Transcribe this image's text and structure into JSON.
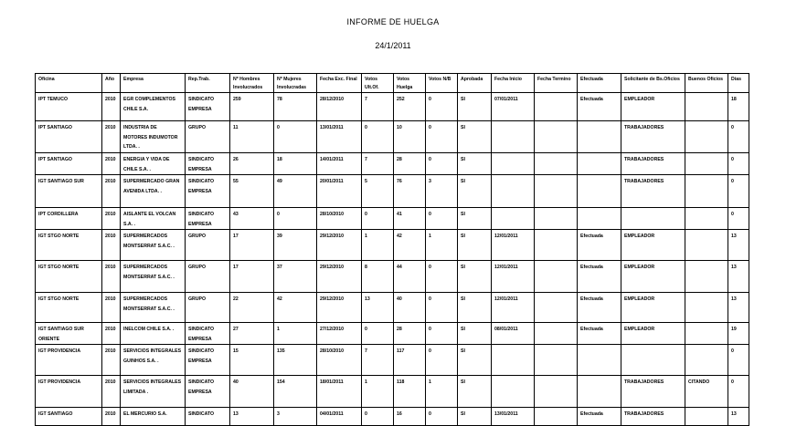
{
  "report": {
    "title": "INFORME DE HUELGA",
    "date": "24/1/2011"
  },
  "table": {
    "headers": [
      "Oficina",
      "Año",
      "Empresa",
      "Rep.Trab.",
      "Nº Hombres Involucrados",
      "Nº Mujeres Involucradas",
      "Fecha Exc. Final",
      "Votos Ult.Of.",
      "Votos Huelga",
      "Votos N/B",
      "Aprobada",
      "Fecha Inicio",
      "Fecha Termino",
      "Efectuada",
      "Solicitante de Bs.Oficios",
      "Buenos Oficios",
      "Días"
    ],
    "rows": [
      [
        "IPT TEMUCO",
        "2010",
        "EGR COMPLEMENTOS CHILE S.A.",
        "SINDICATO EMPRESA",
        "259",
        "78",
        "28/12/2010",
        "7",
        "252",
        "0",
        "SI",
        "07/01/2011",
        "",
        "Efectuada",
        "EMPLEADOR",
        "",
        "18"
      ],
      [
        "IPT SANTIAGO",
        "2010",
        "INDUSTRIA DE MOTORES INDUMOTOR LTDA. .",
        "GRUPO",
        "11",
        "0",
        "13/01/2011",
        "0",
        "10",
        "0",
        "SI",
        "",
        "",
        "",
        "TRABAJADORES",
        "",
        "0"
      ],
      [
        "IPT SANTIAGO",
        "2010",
        "ENERGIA Y VIDA DE CHILE S.A. .",
        "SINDICATO EMPRESA",
        "26",
        "18",
        "14/01/2011",
        "7",
        "28",
        "0",
        "SI",
        "",
        "",
        "",
        "TRABAJADORES",
        "",
        "0"
      ],
      [
        "IGT SANTIAGO SUR",
        "2010",
        "SUPERMERCADO GRAN AVENIDA LTDA. .",
        "SINDICATO EMPRESA",
        "55",
        "49",
        "20/01/2011",
        "5",
        "76",
        "3",
        "SI",
        "",
        "",
        "",
        "TRABAJADORES",
        "",
        "0"
      ],
      [
        "IPT CORDILLERA",
        "2010",
        "AISLANTE EL VOLCAN S.A. .",
        "SINDICATO EMPRESA",
        "43",
        "0",
        "28/10/2010",
        "0",
        "41",
        "0",
        "SI",
        "",
        "",
        "",
        "",
        "",
        "0"
      ],
      [
        "IGT STGO NORTE",
        "2010",
        "SUPERMERCADOS MONTSERRAT S.A.C. .",
        "GRUPO",
        "17",
        "39",
        "29/12/2010",
        "1",
        "42",
        "1",
        "SI",
        "12/01/2011",
        "",
        "Efectuada",
        "EMPLEADOR",
        "",
        "13"
      ],
      [
        "IGT STGO NORTE",
        "2010",
        "SUPERMERCADOS MONTSERRAT S.A.C. .",
        "GRUPO",
        "17",
        "37",
        "29/12/2010",
        "8",
        "44",
        "0",
        "SI",
        "12/01/2011",
        "",
        "Efectuada",
        "EMPLEADOR",
        "",
        "13"
      ],
      [
        "IGT STGO NORTE",
        "2010",
        "SUPERMERCADOS MONTSERRAT S.A.C. .",
        "GRUPO",
        "22",
        "42",
        "29/12/2010",
        "13",
        "40",
        "0",
        "SI",
        "12/01/2011",
        "",
        "Efectuada",
        "EMPLEADOR",
        "",
        "13"
      ],
      [
        "IGT SANTIAGO SUR ORIENTE",
        "2010",
        "INELCOM CHILE S.A. .",
        "SINDICATO EMPRESA",
        "27",
        "1",
        "27/12/2010",
        "0",
        "28",
        "0",
        "SI",
        "08/01/2011",
        "",
        "Efectuada",
        "EMPLEADOR",
        "",
        "19"
      ],
      [
        "IGT PROVIDENCIA",
        "2010",
        "SERVICIOS INTEGRALES GUINHOS S.A. .",
        "SINDICATO EMPRESA",
        "15",
        "135",
        "28/10/2010",
        "7",
        "117",
        "0",
        "SI",
        "",
        "",
        "",
        "",
        "",
        "0"
      ],
      [
        "IGT PROVIDENCIA",
        "2010",
        "SERVICIOS INTEGRALES LIMITADA .",
        "SINDICATO EMPRESA",
        "40",
        "154",
        "18/01/2011",
        "1",
        "118",
        "1",
        "SI",
        "",
        "",
        "",
        "TRABAJADORES",
        "CITANDO",
        "0"
      ],
      [
        "IGT SANTIAGO",
        "2010",
        "EL MERCURIO S.A.",
        "SINDICATO",
        "13",
        "3",
        "04/01/2011",
        "0",
        "16",
        "0",
        "SI",
        "13/01/2011",
        "",
        "Efectuada",
        "TRABAJADORES",
        "",
        "13"
      ]
    ]
  }
}
